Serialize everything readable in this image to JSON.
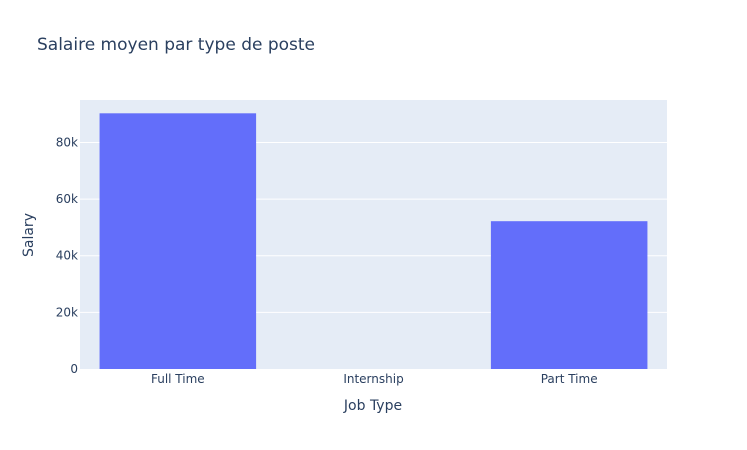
{
  "chart_data": {
    "type": "bar",
    "title": "Salaire moyen par type de poste",
    "xlabel": "Job Type",
    "ylabel": "Salary",
    "categories": [
      "Full Time",
      "Internship",
      "Part Time"
    ],
    "values": [
      90300,
      0,
      52200
    ],
    "ylim": [
      0,
      95000
    ],
    "yticks": [
      0,
      20000,
      40000,
      60000,
      80000
    ],
    "ytick_labels": [
      "0",
      "20k",
      "40k",
      "60k",
      "80k"
    ],
    "grid": true,
    "legend": false,
    "colors": {
      "bar": "#636efa",
      "plot_bg": "#e5ecf6",
      "grid": "#ffffff",
      "text": "#2a3f5f"
    }
  }
}
